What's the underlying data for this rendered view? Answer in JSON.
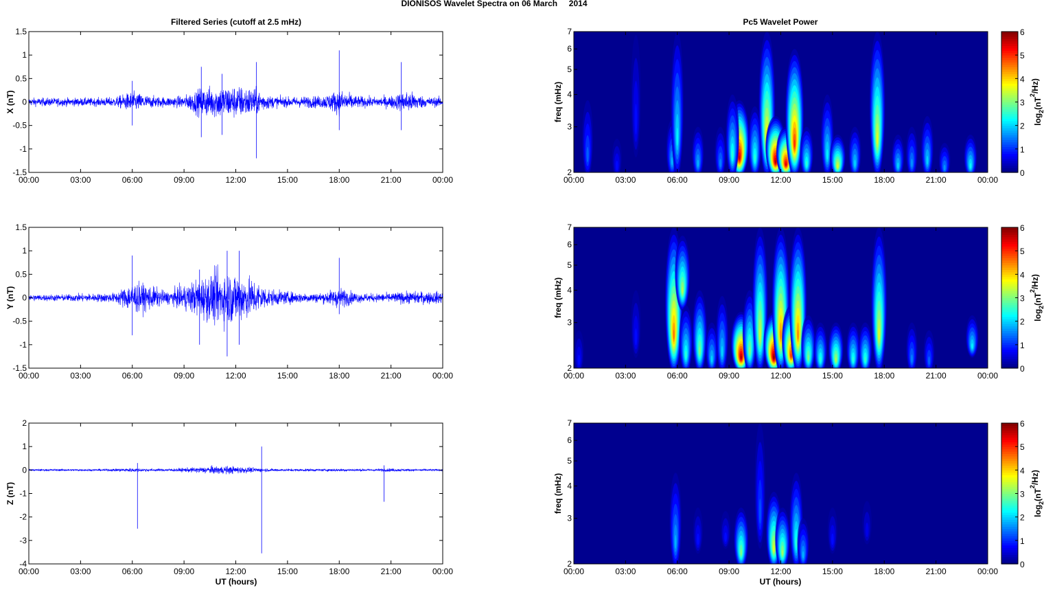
{
  "title": "DIONISOS Wavelet Spectra on 06 March     2014",
  "left_title": "Filtered Series (cutoff at 2.5 mHz)",
  "right_title": "Pc5 Wavelet Power",
  "x_label": "UT (hours)",
  "colors": {
    "trace": "#0000ff",
    "background_power": "#00008f"
  },
  "chart_data": [
    {
      "type": "line",
      "name": "X",
      "ylabel": "X (nT)",
      "ylim": [
        -1.5,
        1.5
      ],
      "yticks": [
        "-1.5",
        "-1",
        "-0.5",
        "0",
        "0.5",
        "1",
        "1.5"
      ],
      "ytick_values": [
        -1.5,
        -1,
        -0.5,
        0,
        0.5,
        1,
        1.5
      ],
      "xlim_hours": [
        0,
        24
      ],
      "xticks": [
        "00:00",
        "03:00",
        "06:00",
        "09:00",
        "12:00",
        "15:00",
        "18:00",
        "21:00",
        "00:00"
      ],
      "envelope_hourly_nT": [
        0.1,
        0.1,
        0.1,
        0.1,
        0.1,
        0.12,
        0.25,
        0.15,
        0.12,
        0.15,
        0.35,
        0.4,
        0.4,
        0.35,
        0.15,
        0.12,
        0.14,
        0.15,
        0.3,
        0.15,
        0.12,
        0.15,
        0.28,
        0.12,
        0.12
      ],
      "spikes": [
        [
          6.0,
          0.45,
          -0.5
        ],
        [
          10.0,
          0.75,
          -0.75
        ],
        [
          11.2,
          0.6,
          -0.7
        ],
        [
          13.2,
          0.85,
          -1.2
        ],
        [
          18.0,
          1.1,
          -0.6
        ],
        [
          21.6,
          0.85,
          -0.6
        ]
      ]
    },
    {
      "type": "line",
      "name": "Y",
      "ylabel": "Y (nT)",
      "ylim": [
        -1.5,
        1.5
      ],
      "yticks": [
        "-1.5",
        "-1",
        "-0.5",
        "0",
        "0.5",
        "1",
        "1.5"
      ],
      "ytick_values": [
        -1.5,
        -1,
        -0.5,
        0,
        0.5,
        1,
        1.5
      ],
      "xlim_hours": [
        0,
        24
      ],
      "xticks": [
        "00:00",
        "03:00",
        "06:00",
        "09:00",
        "12:00",
        "15:00",
        "18:00",
        "21:00",
        "00:00"
      ],
      "envelope_hourly_nT": [
        0.08,
        0.08,
        0.08,
        0.1,
        0.1,
        0.12,
        0.38,
        0.3,
        0.15,
        0.3,
        0.5,
        0.65,
        0.65,
        0.45,
        0.2,
        0.15,
        0.12,
        0.12,
        0.25,
        0.12,
        0.1,
        0.12,
        0.15,
        0.15,
        0.15
      ],
      "spikes": [
        [
          6.0,
          0.9,
          -0.8
        ],
        [
          9.9,
          0.6,
          -1.0
        ],
        [
          11.5,
          1.0,
          -1.25
        ],
        [
          12.2,
          1.0,
          -1.0
        ],
        [
          18.0,
          0.85,
          -0.35
        ]
      ]
    },
    {
      "type": "line",
      "name": "Z",
      "ylabel": "Z (nT)",
      "ylim": [
        -4,
        2
      ],
      "yticks": [
        "-4",
        "-3",
        "-2",
        "-1",
        "0",
        "1",
        "2"
      ],
      "ytick_values": [
        -4,
        -3,
        -2,
        -1,
        0,
        1,
        2
      ],
      "xlim_hours": [
        0,
        24
      ],
      "xticks": [
        "00:00",
        "03:00",
        "06:00",
        "09:00",
        "12:00",
        "15:00",
        "18:00",
        "21:00",
        "00:00"
      ],
      "envelope_hourly_nT": [
        0.05,
        0.05,
        0.05,
        0.05,
        0.05,
        0.06,
        0.1,
        0.07,
        0.06,
        0.1,
        0.15,
        0.2,
        0.18,
        0.12,
        0.07,
        0.06,
        0.06,
        0.06,
        0.07,
        0.06,
        0.06,
        0.08,
        0.06,
        0.05,
        0.05
      ],
      "spikes": [
        [
          6.3,
          0.3,
          -2.5
        ],
        [
          13.5,
          1.0,
          -3.55
        ],
        [
          20.6,
          0.2,
          -1.35
        ]
      ]
    },
    {
      "type": "heatmap",
      "name": "X power",
      "ylabel": "freq (mHz)",
      "yscale": "log",
      "ylim": [
        2,
        7
      ],
      "yticks": [
        "2",
        "3",
        "4",
        "5",
        "6",
        "7"
      ],
      "ytick_values": [
        2,
        3,
        4,
        5,
        6,
        7
      ],
      "xlim_hours": [
        0,
        24
      ],
      "xticks": [
        "00:00",
        "03:00",
        "06:00",
        "09:00",
        "12:00",
        "15:00",
        "18:00",
        "21:00",
        "00:00"
      ],
      "colorbar": {
        "label": "log2(nT2/Hz)",
        "range": [
          0,
          6
        ],
        "ticks": [
          "0",
          "1",
          "2",
          "3",
          "4",
          "5",
          "6"
        ]
      },
      "blobs_hour_fmin_fmax_power": [
        [
          0.8,
          2,
          3.8,
          1.3
        ],
        [
          2.5,
          2,
          2.7,
          0.8
        ],
        [
          3.6,
          2.4,
          6.8,
          0.8
        ],
        [
          5.7,
          2,
          3.2,
          1.8
        ],
        [
          6.0,
          2,
          7,
          2.2
        ],
        [
          7.2,
          2,
          3,
          1.8
        ],
        [
          8.5,
          2,
          3,
          1.5
        ],
        [
          9.6,
          2,
          3.8,
          5.6
        ],
        [
          9.2,
          2,
          4,
          2.5
        ],
        [
          10.5,
          2,
          3.6,
          2.5
        ],
        [
          11.2,
          2,
          7,
          4
        ],
        [
          11.7,
          2,
          3.3,
          5.8
        ],
        [
          12.3,
          2,
          3,
          5.5
        ],
        [
          12.8,
          2,
          6,
          5
        ],
        [
          13.5,
          2,
          3,
          2.5
        ],
        [
          14.7,
          2,
          4,
          2.2
        ],
        [
          15.3,
          2,
          2.8,
          3.6
        ],
        [
          16.3,
          2,
          3,
          2
        ],
        [
          17.6,
          2,
          7,
          3.6
        ],
        [
          18.8,
          2,
          2.8,
          2
        ],
        [
          19.6,
          2,
          3,
          1.6
        ],
        [
          20.5,
          2,
          3.3,
          2
        ],
        [
          21.5,
          2,
          2.6,
          1.6
        ],
        [
          23.0,
          2,
          2.8,
          2.3
        ]
      ]
    },
    {
      "type": "heatmap",
      "name": "Y power",
      "ylabel": "freq (mHz)",
      "yscale": "log",
      "ylim": [
        2,
        7
      ],
      "yticks": [
        "2",
        "3",
        "4",
        "5",
        "6",
        "7"
      ],
      "ytick_values": [
        2,
        3,
        4,
        5,
        6,
        7
      ],
      "xlim_hours": [
        0,
        24
      ],
      "xticks": [
        "00:00",
        "03:00",
        "06:00",
        "09:00",
        "12:00",
        "15:00",
        "18:00",
        "21:00",
        "00:00"
      ],
      "colorbar": {
        "label": "log2(nT2/Hz)",
        "range": [
          0,
          6
        ],
        "ticks": [
          "0",
          "1",
          "2",
          "3",
          "4",
          "5",
          "6"
        ]
      },
      "blobs_hour_fmin_fmax_power": [
        [
          0.3,
          2,
          2.8,
          0.8
        ],
        [
          3.6,
          2.3,
          4,
          0.8
        ],
        [
          5.8,
          2,
          7,
          4.6
        ],
        [
          6.3,
          3.5,
          6.5,
          3.3
        ],
        [
          6.5,
          2,
          3.5,
          2.5
        ],
        [
          7.3,
          2,
          4,
          3
        ],
        [
          8.0,
          2,
          3,
          2
        ],
        [
          8.6,
          2,
          3.8,
          2
        ],
        [
          9.7,
          2,
          3.3,
          5.8
        ],
        [
          10.2,
          2,
          4,
          3
        ],
        [
          10.8,
          2,
          7,
          3.5
        ],
        [
          11.6,
          2,
          3.3,
          6
        ],
        [
          12.0,
          2,
          7,
          4.5
        ],
        [
          12.6,
          2,
          3.5,
          5
        ],
        [
          13.0,
          2,
          7,
          4.5
        ],
        [
          13.6,
          2,
          3.2,
          3
        ],
        [
          14.3,
          2,
          3,
          2.5
        ],
        [
          15.2,
          2,
          3,
          3.3
        ],
        [
          16.2,
          2,
          3,
          2.5
        ],
        [
          16.9,
          2,
          3,
          2.6
        ],
        [
          17.7,
          2,
          7,
          3.6
        ],
        [
          19.6,
          2,
          3,
          1.5
        ],
        [
          20.6,
          2,
          2.8,
          1.3
        ],
        [
          23.1,
          2.3,
          3.2,
          2.2
        ]
      ]
    },
    {
      "type": "heatmap",
      "name": "Z power",
      "ylabel": "freq (mHz)",
      "yscale": "log",
      "ylim": [
        2,
        7
      ],
      "yticks": [
        "2",
        "3",
        "4",
        "5",
        "6",
        "7"
      ],
      "ytick_values": [
        2,
        3,
        4,
        5,
        6,
        7
      ],
      "xlim_hours": [
        0,
        24
      ],
      "xticks": [
        "00:00",
        "03:00",
        "06:00",
        "09:00",
        "12:00",
        "15:00",
        "18:00",
        "21:00",
        "00:00"
      ],
      "colorbar": {
        "label": "log2(nT2/Hz)",
        "range": [
          0,
          6
        ],
        "ticks": [
          "0",
          "1",
          "2",
          "3",
          "4",
          "5",
          "6"
        ]
      },
      "blobs_hour_fmin_fmax_power": [
        [
          5.9,
          2,
          4.5,
          1.8
        ],
        [
          7.2,
          2.3,
          3.3,
          0.8
        ],
        [
          8.8,
          2.4,
          3.2,
          0.8
        ],
        [
          9.7,
          2,
          3.3,
          3
        ],
        [
          10.8,
          2.4,
          7,
          1.2
        ],
        [
          11.6,
          2,
          3.8,
          3.6
        ],
        [
          12.1,
          2,
          3.3,
          3.2
        ],
        [
          12.9,
          2,
          4.5,
          2.5
        ],
        [
          13.3,
          2,
          3,
          1.8
        ],
        [
          15.0,
          2.3,
          3.3,
          0.8
        ],
        [
          17.0,
          2.5,
          3.5,
          0.6
        ]
      ]
    }
  ]
}
